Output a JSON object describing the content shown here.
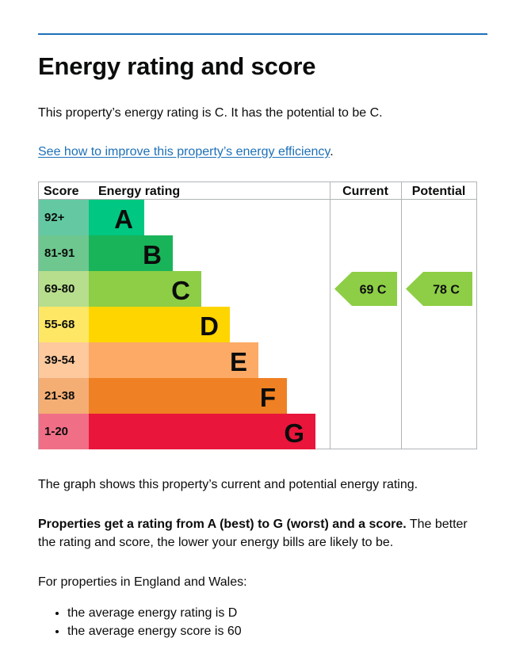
{
  "page": {
    "title": "Energy rating and score",
    "intro": "This property’s energy rating is C. It has the potential to be C.",
    "improve_link": "See how to improve this property’s energy efficiency",
    "improve_link_suffix": ".",
    "graph_caption": "The graph shows this property’s current and potential energy rating.",
    "rating_info_bold": "Properties get a rating from A (best) to G (worst) and a score.",
    "rating_info_rest": " The better the rating and score, the lower your energy bills are likely to be.",
    "region_intro": "For properties in England and Wales:",
    "averages": [
      "the average energy rating is D",
      "the average energy score is 60"
    ]
  },
  "chart_data": {
    "type": "bar",
    "headers": {
      "score": "Score",
      "rating": "Energy rating",
      "current": "Current",
      "potential": "Potential"
    },
    "bands": [
      {
        "letter": "A",
        "range": "92+",
        "min": 92,
        "color": "#00c781",
        "score_bg": "#64c9a3"
      },
      {
        "letter": "B",
        "range": "81-91",
        "min": 81,
        "color": "#19b459",
        "score_bg": "#6dc78f"
      },
      {
        "letter": "C",
        "range": "69-80",
        "min": 69,
        "color": "#8dce46",
        "score_bg": "#b6de8c"
      },
      {
        "letter": "D",
        "range": "55-68",
        "min": 55,
        "color": "#ffd500",
        "score_bg": "#ffe766"
      },
      {
        "letter": "E",
        "range": "39-54",
        "min": 39,
        "color": "#fcaa65",
        "score_bg": "#fdc99d"
      },
      {
        "letter": "F",
        "range": "21-38",
        "min": 21,
        "color": "#ef8023",
        "score_bg": "#f4ae74"
      },
      {
        "letter": "G",
        "range": "1-20",
        "min": 1,
        "color": "#e9153b",
        "score_bg": "#f06f86"
      }
    ],
    "current": {
      "score": 69,
      "band": "C",
      "label": "69  C",
      "color": "#8dce46"
    },
    "potential": {
      "score": 78,
      "band": "C",
      "label": "78  C",
      "color": "#8dce46"
    }
  }
}
